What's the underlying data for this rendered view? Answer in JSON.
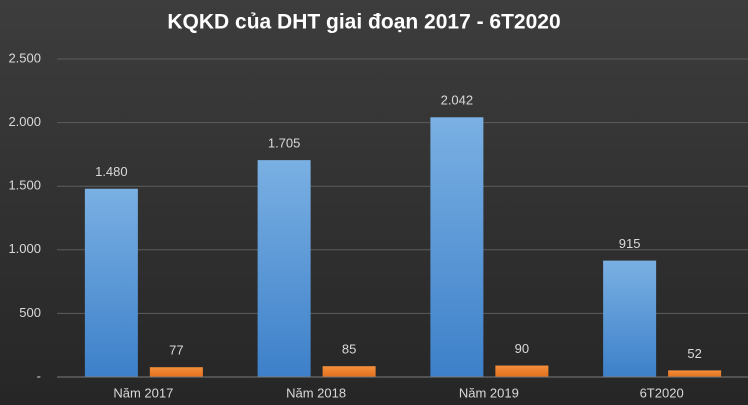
{
  "chart_data": {
    "type": "bar",
    "title": "KQKD của DHT giai đoạn 2017 - 6T2020",
    "categories": [
      "Năm 2017",
      "Năm 2018",
      "Năm 2019",
      "6T2020"
    ],
    "series": [
      {
        "color": "#5b9bd5",
        "values": [
          1480,
          1705,
          2042,
          915
        ],
        "value_labels": [
          "1.480",
          "1.705",
          "2.042",
          "915"
        ]
      },
      {
        "color": "#ed7d31",
        "values": [
          77,
          85,
          90,
          52
        ]
      }
    ],
    "ylim": [
      0,
      2500
    ],
    "yticks": [
      {
        "value": 0,
        "label": "-"
      },
      500,
      {
        "value": 1000,
        "label": "1.000"
      },
      {
        "value": 1500,
        "label": "1.500"
      },
      {
        "value": 2000,
        "label": "2.000"
      },
      {
        "value": 2500,
        "label": "2.500"
      }
    ],
    "grid": true
  }
}
